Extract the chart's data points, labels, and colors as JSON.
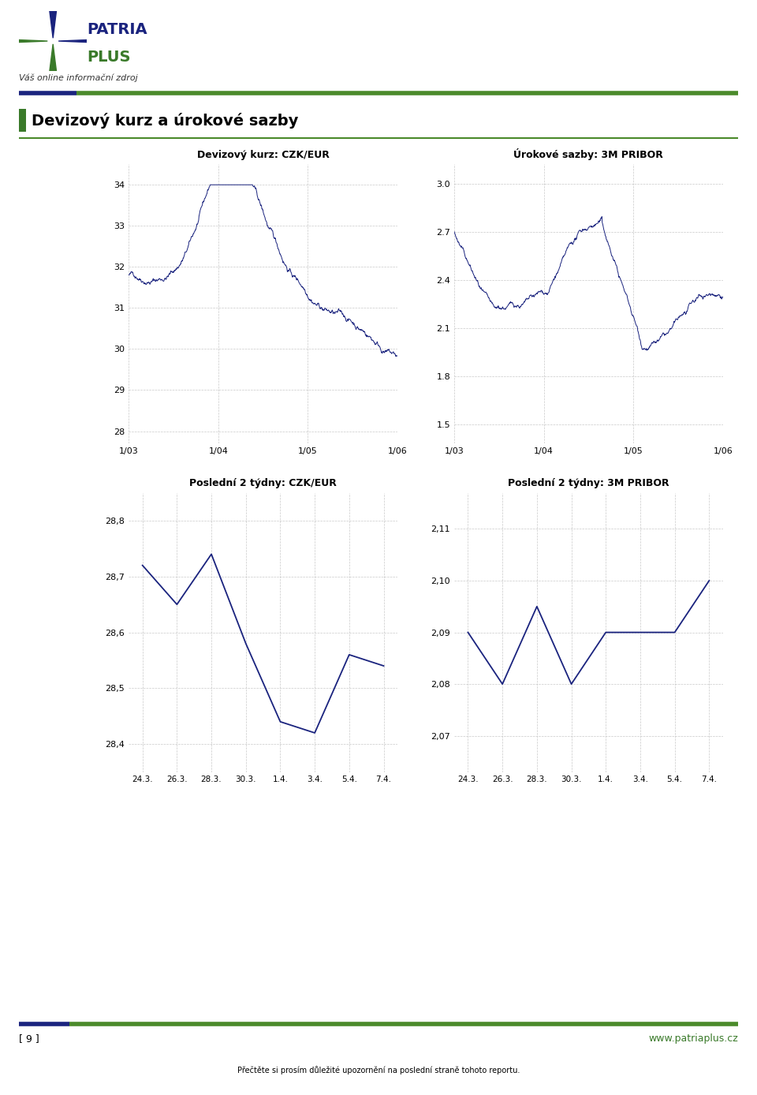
{
  "page_title": "Devizový kurz a úrokové sazby",
  "header_text": "Váš online informační zdroj",
  "footer_left": "[ 9 ]",
  "footer_right": "www.patriaplus.cz",
  "footer_bottom": "Přečtěte si prosím důležité upozornění na poslední straně tohoto reportu.",
  "chart1_title": "Devizový kurz: CZK/EUR",
  "chart2_title": "Úrokové sazby: 3M PRIBOR",
  "chart3_title": "Poslední 2 týdny: CZK/EUR",
  "chart4_title": "Poslední 2 týdny: 3M PRIBOR",
  "line_color": "#1a237e",
  "grid_color": "#bbbbbb",
  "green_color": "#3a7a2a",
  "header_green": "#4a8a2a",
  "navy_color": "#1a237e",
  "chart1_yticks": [
    28,
    29,
    30,
    31,
    32,
    33,
    34
  ],
  "chart1_ylim": [
    27.7,
    34.5
  ],
  "chart1_xticks": [
    "1/03",
    "1/04",
    "1/05",
    "1/06"
  ],
  "chart2_yticks": [
    1.5,
    1.8,
    2.1,
    2.4,
    2.7,
    3.0
  ],
  "chart2_ylim": [
    1.38,
    3.12
  ],
  "chart2_xticks": [
    "1/03",
    "1/04",
    "1/05",
    "1/06"
  ],
  "chart3_yticks": [
    28.4,
    28.5,
    28.6,
    28.7,
    28.8
  ],
  "chart3_ylim": [
    28.35,
    28.85
  ],
  "chart3_xticks": [
    "24.3.",
    "26.3.",
    "28.3.",
    "30.3.",
    "1.4.",
    "3.4.",
    "5.4.",
    "7.4."
  ],
  "chart4_yticks": [
    2.07,
    2.08,
    2.09,
    2.1,
    2.11
  ],
  "chart4_ylim": [
    2.063,
    2.117
  ],
  "chart4_xticks": [
    "24.3.",
    "26.3.",
    "28.3.",
    "30.3.",
    "1.4.",
    "3.4.",
    "5.4.",
    "7.4."
  ],
  "czk_eur_short_x": [
    0,
    1,
    2,
    3,
    4,
    5,
    6,
    7
  ],
  "czk_eur_short_y": [
    28.72,
    28.65,
    28.74,
    28.58,
    28.44,
    28.42,
    28.56,
    28.54
  ],
  "pribor_short_x": [
    0,
    1,
    2,
    3,
    4,
    5,
    6,
    7
  ],
  "pribor_short_y": [
    2.09,
    2.08,
    2.095,
    2.08,
    2.09,
    2.09,
    2.09,
    2.1
  ]
}
